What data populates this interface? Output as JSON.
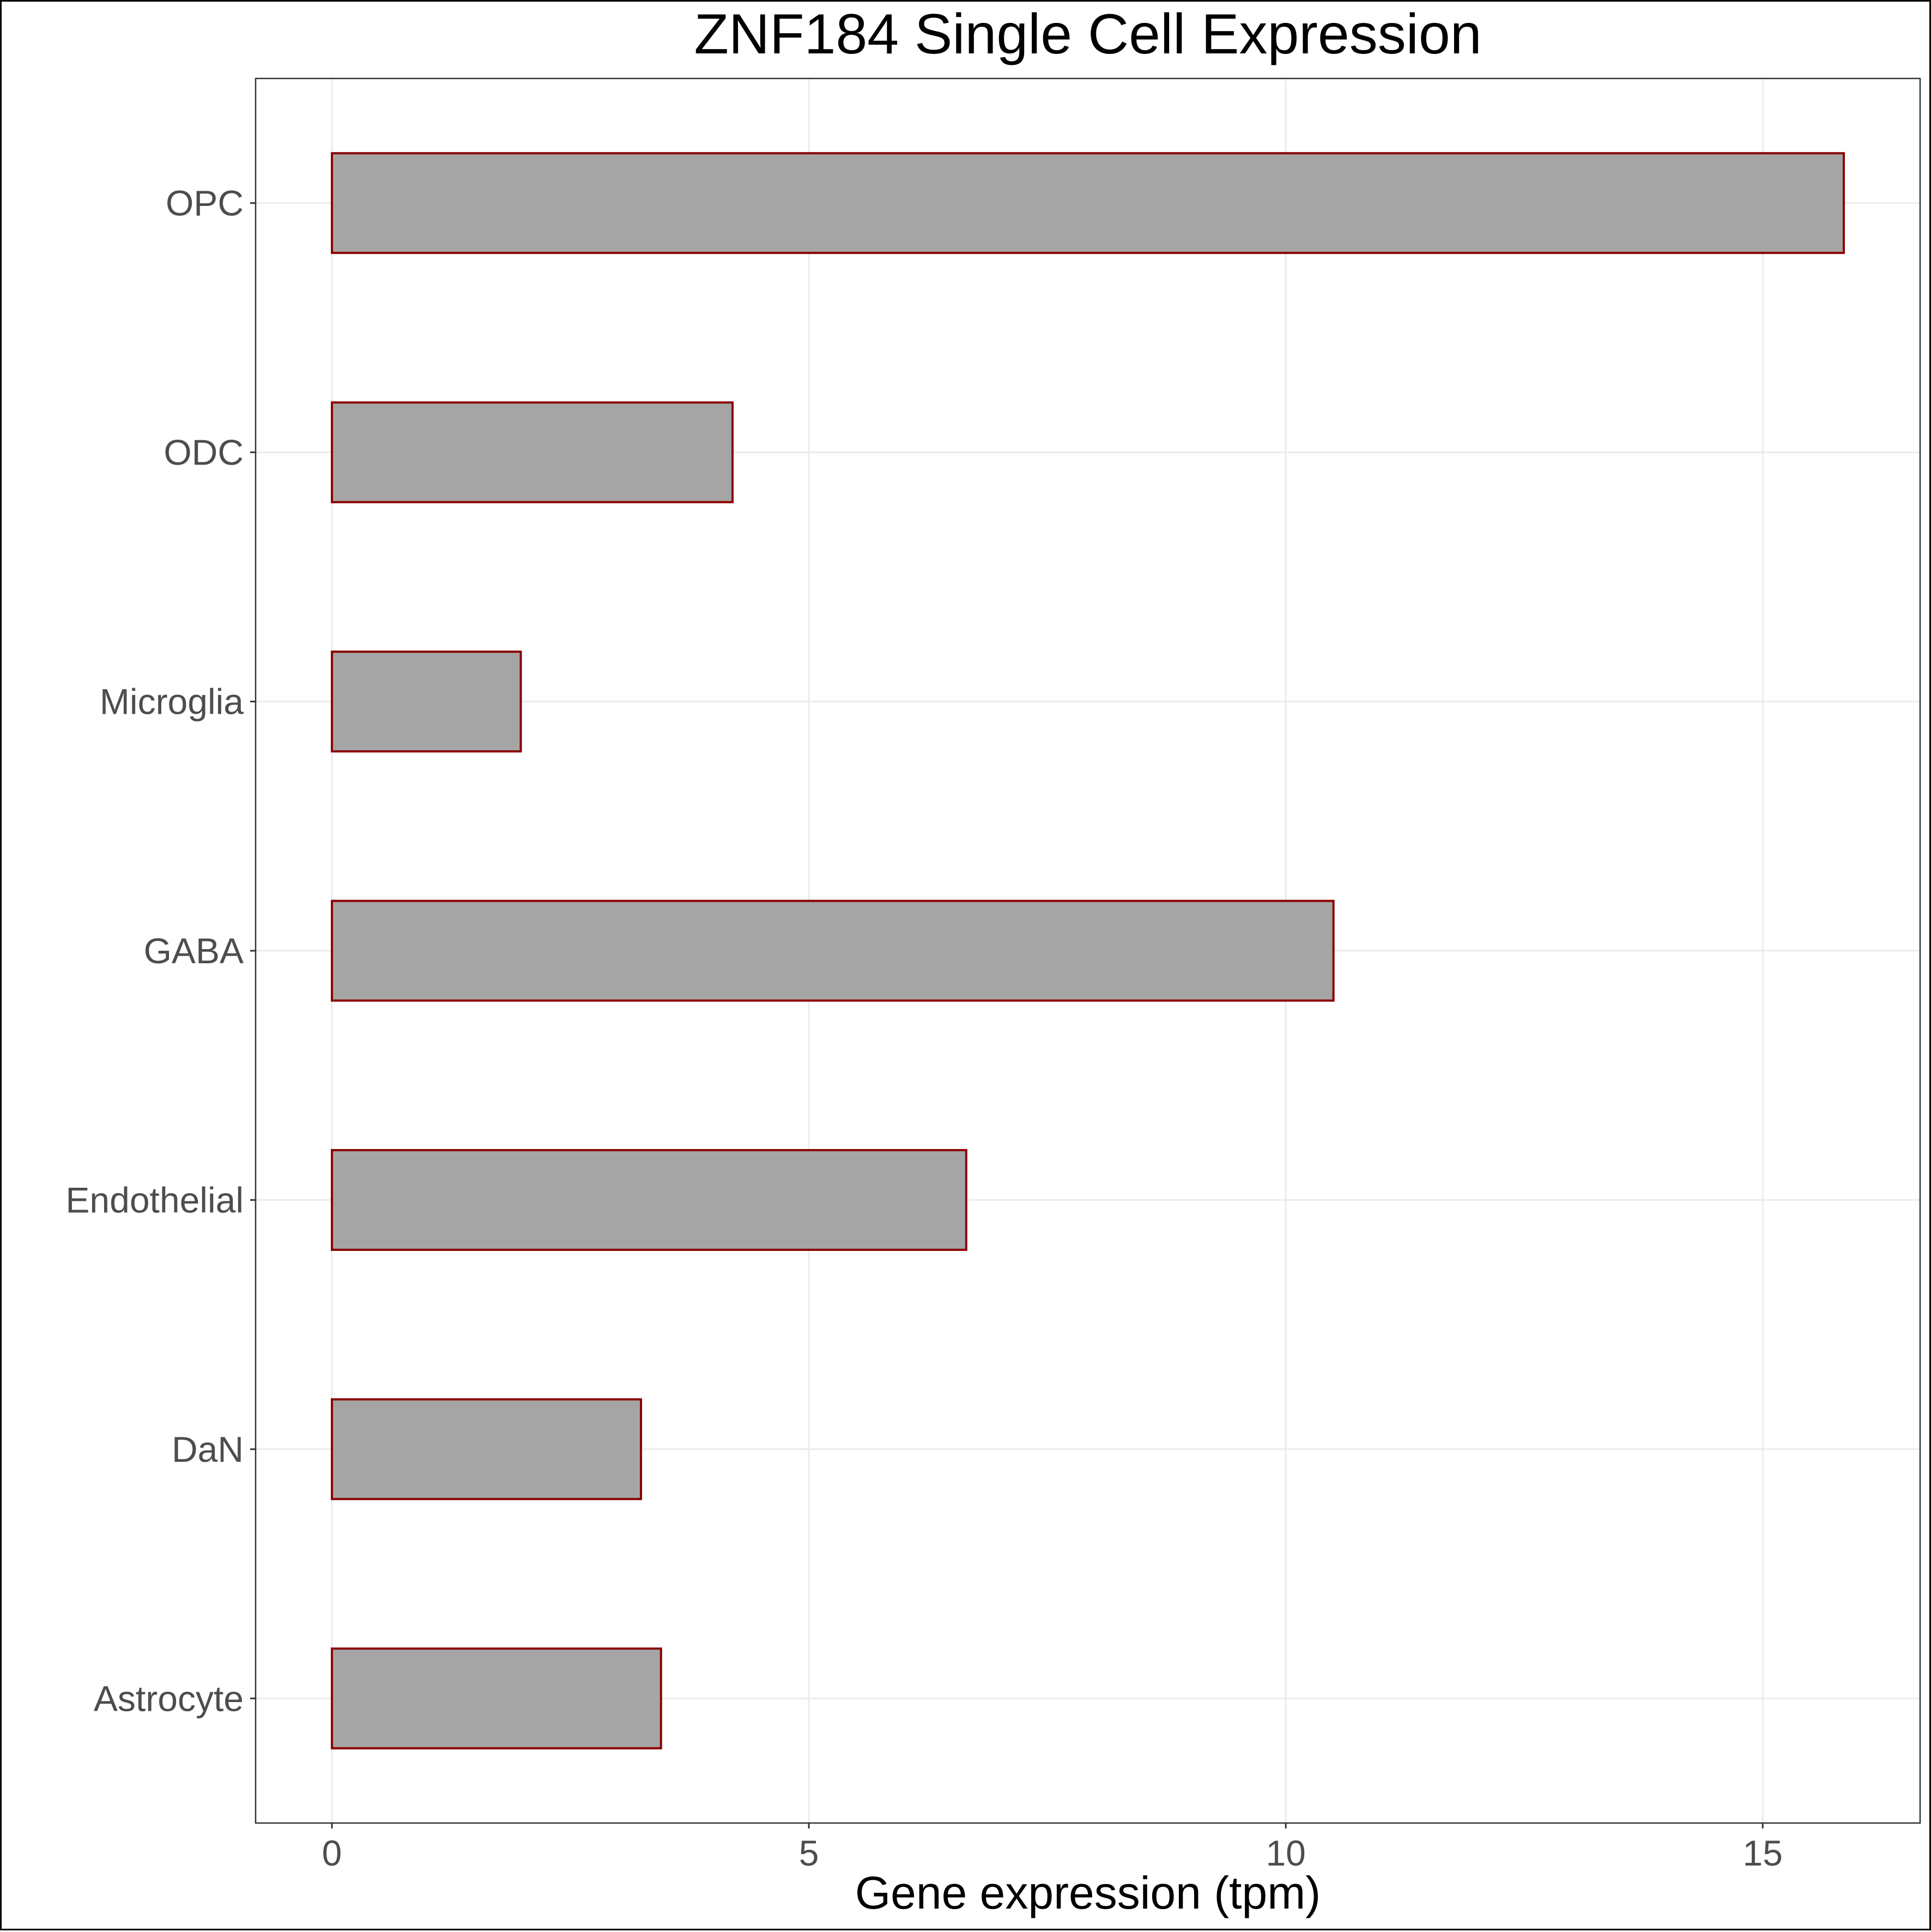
{
  "chart_data": {
    "type": "bar",
    "orientation": "horizontal",
    "title": "ZNF184 Single Cell Expression",
    "xlabel": "Gene expression (tpm)",
    "ylabel": "",
    "categories": [
      "Astrocyte",
      "DaN",
      "Endothelial",
      "GABA",
      "Microglia",
      "ODC",
      "OPC"
    ],
    "values": [
      3.45,
      3.24,
      6.65,
      10.5,
      1.98,
      4.2,
      15.85
    ],
    "xlim": [
      -0.8,
      16.65
    ],
    "x_ticks": [
      0,
      5,
      10,
      15
    ],
    "grid": true,
    "legend": "none",
    "colors": {
      "bar_fill": "#a5a5a5",
      "bar_stroke": "#8b0000",
      "grid": "#ebebeb",
      "panel_border": "#333333"
    }
  }
}
